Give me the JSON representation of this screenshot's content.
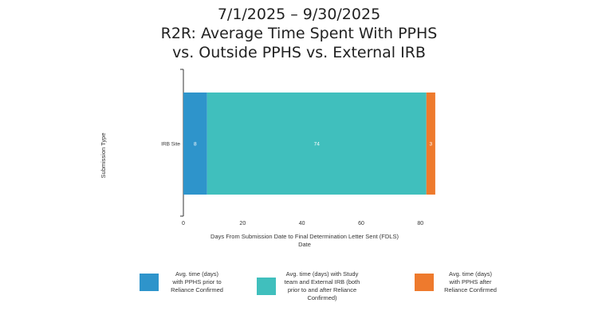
{
  "title_lines": [
    "7/1/2025 – 9/30/2025",
    "R2R: Average Time Spent With PPHS",
    "vs. Outside PPHS vs. External IRB"
  ],
  "chart_data": {
    "type": "bar",
    "orientation": "horizontal",
    "stacked": true,
    "categories": [
      "IRB Site"
    ],
    "series": [
      {
        "name": "Avg. time (days) with PPHS prior to Reliance Confirmed",
        "values": [
          8
        ],
        "color": "#2E94CB"
      },
      {
        "name": "Avg. time (days) with Study team and External IRB (both prior to and after Reliance Confirmed)",
        "values": [
          74
        ],
        "color": "#40BFBD"
      },
      {
        "name": "Avg. time (days) with PPHS after Reliance Confirmed",
        "values": [
          3
        ],
        "color": "#EE7A2D"
      }
    ],
    "xlabel": "Days From Submission Date to Final Determination Letter Sent (FDLS)",
    "xlabel_line2": "Date",
    "ylabel": "Submission Type",
    "xlim": [
      0,
      85
    ],
    "xticks": [
      0,
      20,
      40,
      60,
      80
    ],
    "grid": false,
    "legend_position": "bottom"
  },
  "legend": [
    {
      "lines": [
        "Avg. time (days)",
        "with PPHS prior to",
        "Reliance Confirmed"
      ],
      "color": "#2E94CB"
    },
    {
      "lines": [
        "Avg. time (days) with Study",
        "team and External IRB (both",
        "prior to and after Reliance",
        "Confirmed)"
      ],
      "color": "#40BFBD"
    },
    {
      "lines": [
        "Avg. time (days)",
        "with PPHS after",
        "Reliance Confirmed"
      ],
      "color": "#EE7A2D"
    }
  ]
}
